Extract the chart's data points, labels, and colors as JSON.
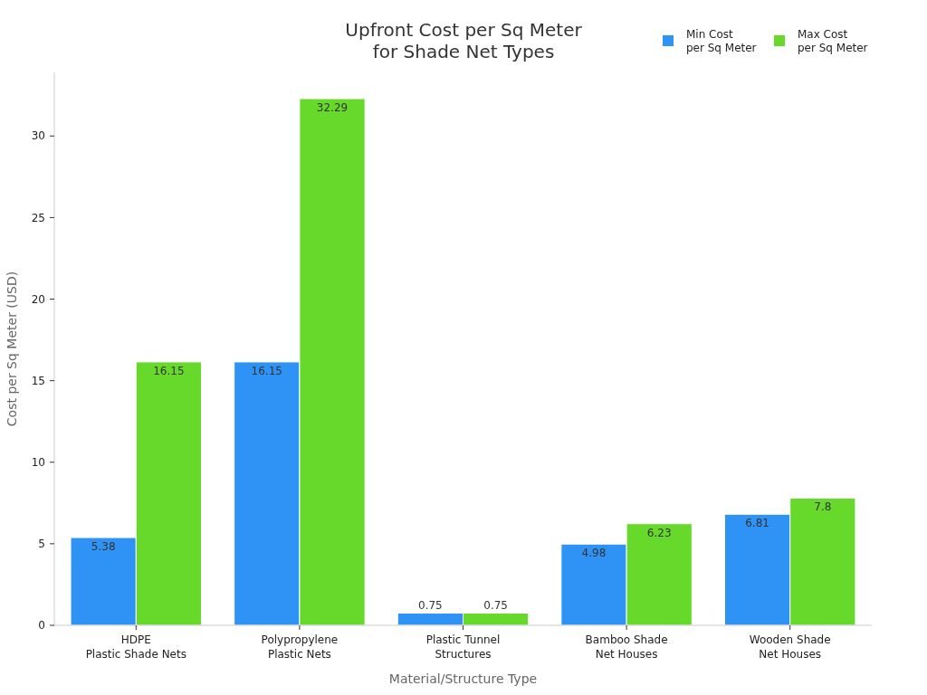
{
  "chart_data": {
    "type": "bar",
    "title": "Upfront Cost per Sq Meter\nfor Shade Net Types",
    "xlabel": "Material/Structure Type",
    "ylabel": "Cost per Sq Meter (USD)",
    "categories": [
      "HDPE\nPlastic Shade Nets",
      "Polypropylene\nPlastic Nets",
      "Plastic Tunnel\nStructures",
      "Bamboo Shade\nNet Houses",
      "Wooden Shade\nNet Houses"
    ],
    "series": [
      {
        "name": "Min Cost\nper Sq Meter",
        "color": "#2e93f5",
        "values": [
          5.38,
          16.15,
          0.75,
          4.98,
          6.81
        ]
      },
      {
        "name": "Max Cost\nper Sq Meter",
        "color": "#66d92a",
        "values": [
          16.15,
          32.29,
          0.75,
          6.23,
          7.8
        ]
      }
    ],
    "ylim": [
      0,
      33.9
    ],
    "yticks": [
      0,
      5,
      10,
      15,
      20,
      25,
      30
    ],
    "grid": false,
    "legend": "top right",
    "data_labels": true
  }
}
